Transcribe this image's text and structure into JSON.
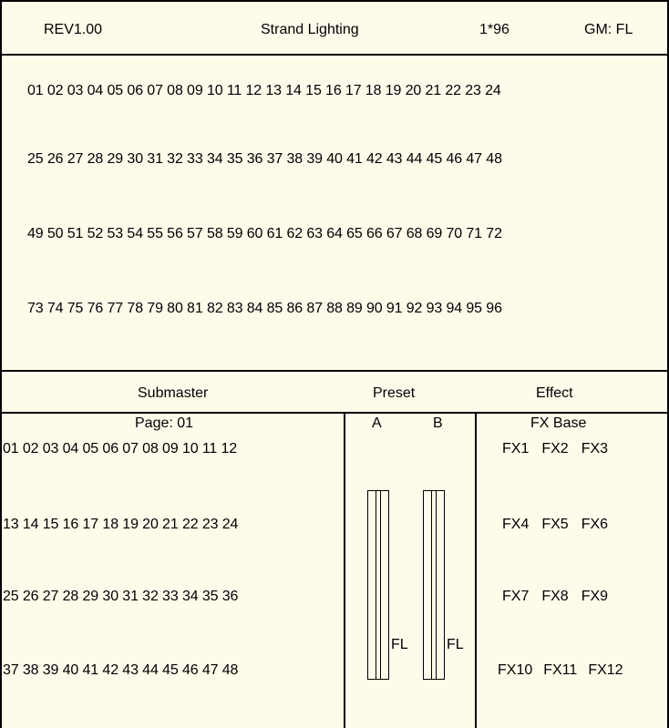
{
  "header": {
    "revision": "REV1.00",
    "title": "Strand Lighting",
    "channel_info": "1*96",
    "grand_master": "GM: FL"
  },
  "channels": {
    "rows": [
      "01 02 03 04 05 06 07 08 09 10 11 12 13 14 15 16 17 18 19 20 21 22 23 24",
      "25 26 27 28 29 30 31 32 33 34 35 36 37 38 39 40 41 42 43 44 45 46 47 48",
      "49 50 51 52 53 54 55 56 57 58 59 60 61 62 63 64 65 66 67 68 69 70 71 72",
      "73 74 75 76 77 78 79 80 81 82 83 84 85 86 87 88 89 90 91 92 93 94 95 96"
    ]
  },
  "sections": {
    "submaster": "Submaster",
    "preset": "Preset",
    "effect": "Effect"
  },
  "submaster": {
    "page": "Page: 01",
    "rows": [
      "01 02 03 04 05 06 07 08 09 10 11 12",
      "13 14 15 16 17 18 19 20 21 22 23 24",
      "25 26 27 28 29 30 31 32 33 34 35 36",
      "37 38 39 40 41 42 43 44 45 46 47 48"
    ]
  },
  "preset": {
    "a_label": "A",
    "b_label": "B",
    "a_value": "FL",
    "b_value": "FL"
  },
  "effect": {
    "base_label": "FX Base",
    "rows": [
      [
        "FX1",
        "FX2",
        "FX3"
      ],
      [
        "FX4",
        "FX5",
        "FX6"
      ],
      [
        "FX7",
        "FX8",
        "FX9"
      ],
      [
        "FX10",
        "FX11",
        "FX12"
      ]
    ]
  },
  "colors": {
    "background": "#fffbeb",
    "lines": "#000000"
  }
}
